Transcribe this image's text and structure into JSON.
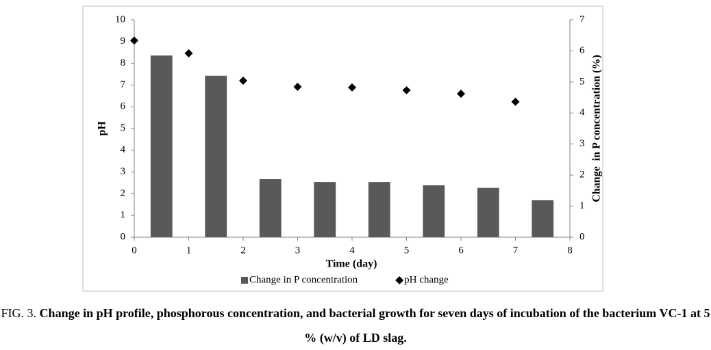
{
  "chart_data": {
    "type": "combo",
    "xlabel": "Time (day)",
    "ylabel": "pH",
    "y2label": "Change  in P concentration (%)",
    "xlim": [
      0,
      8
    ],
    "xticks": [
      0,
      1,
      2,
      3,
      4,
      5,
      6,
      7,
      8
    ],
    "ylim": [
      0,
      10
    ],
    "yticks": [
      0,
      1,
      2,
      3,
      4,
      5,
      6,
      7,
      8,
      9,
      10
    ],
    "y2lim": [
      0,
      7
    ],
    "y2ticks": [
      0,
      1,
      2,
      3,
      4,
      5,
      6,
      7
    ],
    "grid": false,
    "legend": "bottom",
    "series": [
      {
        "name": "Change in P concentration",
        "type": "bar",
        "axis": "y2",
        "color": "#595959",
        "x": [
          0.5,
          1.5,
          2.5,
          3.5,
          4.5,
          5.5,
          6.5,
          7.5
        ],
        "values": [
          5.85,
          5.2,
          1.87,
          1.78,
          1.78,
          1.67,
          1.59,
          1.19
        ]
      },
      {
        "name": "pH change",
        "type": "scatter",
        "color": "#000000",
        "x": [
          0,
          1,
          2,
          3,
          4,
          5,
          6,
          7
        ],
        "values": [
          9.05,
          8.46,
          7.2,
          6.92,
          6.89,
          6.76,
          6.6,
          6.23
        ]
      }
    ]
  },
  "caption_label": "FIG. 3.",
  "caption": "Change in pH profile, phosphorous concentration, and bacterial growth for seven days of incubation of the bacterium VC-1 at 5 % (w/v) of LD slag."
}
